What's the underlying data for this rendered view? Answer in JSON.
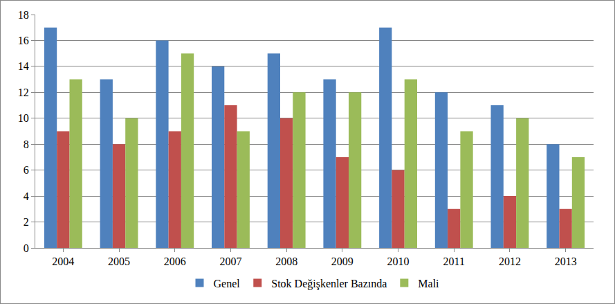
{
  "chart_data": {
    "type": "bar",
    "categories": [
      "2004",
      "2005",
      "2006",
      "2007",
      "2008",
      "2009",
      "2010",
      "2011",
      "2012",
      "2013"
    ],
    "series": [
      {
        "name": "Genel",
        "color": "#4F81BD",
        "values": [
          17,
          13,
          16,
          14,
          15,
          13,
          17,
          12,
          11,
          8
        ]
      },
      {
        "name": "Stok Değişkenler Bazında",
        "color": "#C0504D",
        "values": [
          9,
          8,
          9,
          11,
          10,
          7,
          6,
          3,
          4,
          3
        ]
      },
      {
        "name": "Mali",
        "color": "#9BBB59",
        "values": [
          13,
          10,
          15,
          9,
          12,
          12,
          13,
          9,
          10,
          7
        ]
      }
    ],
    "ylim": [
      0,
      18
    ],
    "yticks": [
      0,
      2,
      4,
      6,
      8,
      10,
      12,
      14,
      16,
      18
    ],
    "grid": true,
    "legend": "bottom"
  }
}
